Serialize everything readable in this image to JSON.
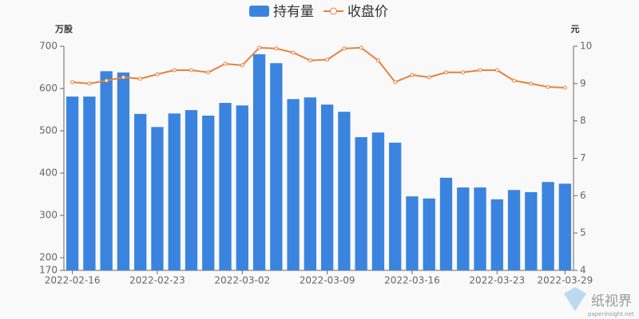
{
  "chart_data": {
    "type": "bar-line",
    "y_label": "万股",
    "y2_label": "元",
    "categories": [
      "2022-02-16",
      null,
      null,
      null,
      null,
      "2022-02-23",
      null,
      null,
      null,
      null,
      "2022-03-02",
      null,
      null,
      null,
      null,
      "2022-03-09",
      null,
      null,
      null,
      null,
      "2022-03-16",
      null,
      null,
      null,
      null,
      "2022-03-23",
      null,
      null,
      null,
      "2022-03-29"
    ],
    "series": [
      {
        "name": "持有量",
        "type": "bar",
        "color": "#3a84e0",
        "axis": "y",
        "values": [
          581,
          581,
          641,
          638,
          540,
          509,
          541,
          549,
          536,
          566,
          560,
          681,
          660,
          575,
          579,
          562,
          545,
          485,
          496,
          472,
          345,
          340,
          389,
          366,
          366,
          338,
          360,
          355,
          379,
          375
        ]
      },
      {
        "name": "收盘价",
        "type": "line",
        "color": "#e8813a",
        "axis": "y2",
        "values": [
          9.04,
          9.0,
          9.08,
          9.17,
          9.13,
          9.25,
          9.36,
          9.36,
          9.3,
          9.53,
          9.49,
          9.96,
          9.94,
          9.83,
          9.62,
          9.64,
          9.94,
          9.96,
          9.62,
          9.04,
          9.23,
          9.17,
          9.3,
          9.3,
          9.36,
          9.36,
          9.08,
          9.0,
          8.91,
          8.89
        ]
      }
    ],
    "ylim": [
      170,
      700
    ],
    "yticks": [
      170,
      200,
      300,
      400,
      500,
      600,
      700
    ],
    "y2lim": [
      4,
      10
    ],
    "y2ticks": [
      4,
      5,
      6,
      7,
      8,
      9,
      10
    ],
    "legend": "top"
  },
  "watermark": {
    "title": "纸视界",
    "subtitle": "paperinsight.net"
  }
}
